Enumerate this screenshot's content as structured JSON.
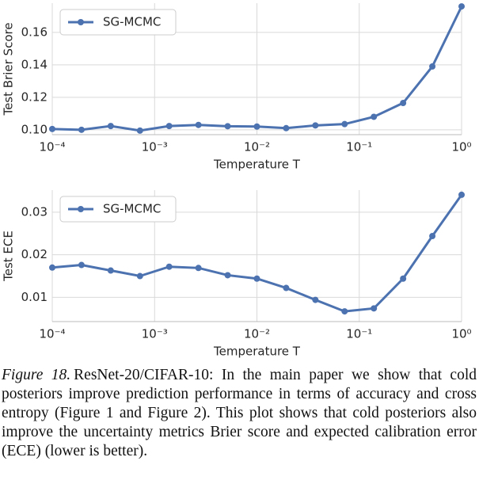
{
  "chart_data": [
    {
      "type": "line",
      "xscale": "log",
      "xlabel": "Temperature T",
      "ylabel": "Test Brier Score",
      "x": [
        0.0001,
        0.0001931,
        0.0003728,
        0.0007197,
        0.001389,
        0.002683,
        0.005179,
        0.01,
        0.01931,
        0.03728,
        0.07197,
        0.1389,
        0.2683,
        0.5179,
        1
      ],
      "series": [
        {
          "name": "SG-MCMC",
          "color": "#4c72b0",
          "values": [
            0.1005,
            0.1,
            0.1023,
            0.0995,
            0.1023,
            0.103,
            0.1022,
            0.102,
            0.101,
            0.1027,
            0.1035,
            0.108,
            0.1165,
            0.139,
            0.176
          ]
        }
      ],
      "xlim": [
        0.0001,
        1
      ],
      "xticks": [
        {
          "value": 0.0001,
          "label": "10⁻⁴"
        },
        {
          "value": 0.001,
          "label": "10⁻³"
        },
        {
          "value": 0.01,
          "label": "10⁻²"
        },
        {
          "value": 0.1,
          "label": "10⁻¹"
        },
        {
          "value": 1,
          "label": "10⁰"
        }
      ],
      "ylim": [
        0.097,
        0.178
      ],
      "yticks": [
        {
          "value": 0.1,
          "label": "0.10"
        },
        0.12,
        0.14,
        0.16
      ],
      "grid": true,
      "legend": "upper-left"
    },
    {
      "type": "line",
      "xscale": "log",
      "xlabel": "Temperature T",
      "ylabel": "Test ECE",
      "x": [
        0.0001,
        0.0001931,
        0.0003728,
        0.0007197,
        0.001389,
        0.002683,
        0.005179,
        0.01,
        0.01931,
        0.03728,
        0.07197,
        0.1389,
        0.2683,
        0.5179,
        1
      ],
      "series": [
        {
          "name": "SG-MCMC",
          "color": "#4c72b0",
          "values": [
            0.017,
            0.0176,
            0.0163,
            0.015,
            0.0172,
            0.0169,
            0.0152,
            0.0144,
            0.0122,
            0.0094,
            0.0067,
            0.0074,
            0.0144,
            0.0244,
            0.0341
          ]
        }
      ],
      "xlim": [
        0.0001,
        1
      ],
      "xticks": [
        {
          "value": 0.0001,
          "label": "10⁻⁴"
        },
        {
          "value": 0.001,
          "label": "10⁻³"
        },
        {
          "value": 0.01,
          "label": "10⁻²"
        },
        {
          "value": 0.1,
          "label": "10⁻¹"
        },
        {
          "value": 1,
          "label": "10⁰"
        }
      ],
      "ylim": [
        0.0043,
        0.0352
      ],
      "yticks": [
        0.01,
        0.02,
        0.03
      ],
      "grid": true,
      "legend": "upper-left"
    }
  ],
  "caption": {
    "label": "Figure 18.",
    "text": "ResNet-20/CIFAR-10: In the main paper we show that cold posteriors improve prediction performance in terms of accuracy and cross entropy (Figure 1 and Figure 2). This plot shows that cold posteriors also improve the uncertainty metrics Brier score and expected calibration error (ECE) (lower is better)."
  }
}
